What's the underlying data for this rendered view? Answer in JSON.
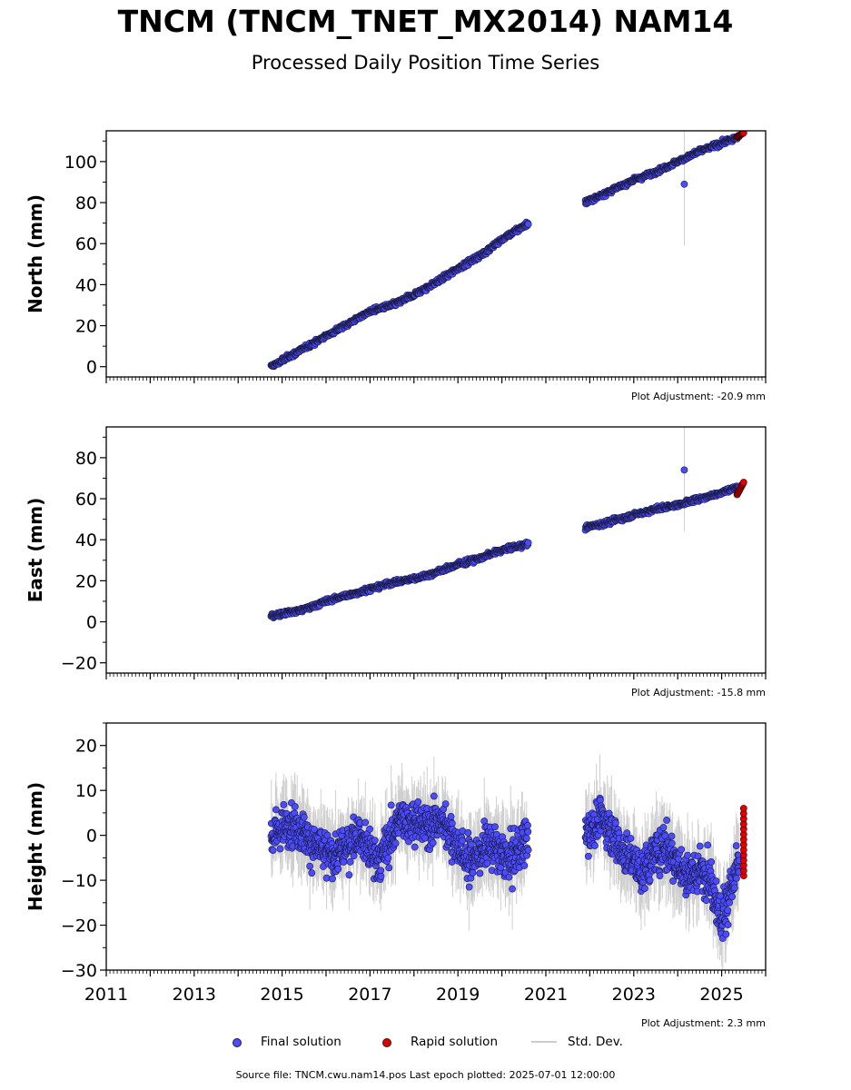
{
  "title": "TNCM (TNCM_TNET_MX2014) NAM14",
  "subtitle": "Processed Daily Position Time Series",
  "legend": {
    "final": "Final solution",
    "rapid": "Rapid solution",
    "std": "Std. Dev."
  },
  "source": "Source file: TNCM.cwu.nam14.pos  Last epoch plotted: 2025-07-01 12:00:00",
  "colors": {
    "final": "#4b4bff",
    "rapid": "#e00000",
    "std": "#bbbbbb"
  },
  "chart_data": [
    {
      "type": "scatter",
      "ylabel": "North (mm)",
      "ylim": [
        -5,
        115
      ],
      "yticks": [
        0,
        20,
        40,
        60,
        80,
        100
      ],
      "xlim": [
        2011,
        2026
      ],
      "adjustment": "Plot Adjustment: -20.9 mm",
      "segments": [
        {
          "x": [
            2014.75,
            2015.5,
            2016.0,
            2016.5,
            2017.0,
            2017.5,
            2018.0,
            2018.5,
            2019.0,
            2019.5,
            2020.0,
            2020.6
          ],
          "y": [
            0,
            9,
            15,
            21,
            27,
            30,
            35,
            41,
            48,
            54,
            62,
            70
          ]
        },
        {
          "x": [
            2021.9,
            2022.5,
            2023.0,
            2023.5,
            2024.0,
            2024.5,
            2025.0,
            2025.4
          ],
          "y": [
            80,
            86,
            91,
            95,
            100,
            105,
            109,
            112
          ]
        }
      ],
      "outliers": [
        {
          "x": 2024.15,
          "y": 89
        }
      ],
      "rapid": {
        "x": [
          2025.35,
          2025.5
        ],
        "y": [
          112,
          114
        ]
      }
    },
    {
      "type": "scatter",
      "ylabel": "East (mm)",
      "ylim": [
        -25,
        95
      ],
      "yticks": [
        -20,
        0,
        20,
        40,
        60,
        80
      ],
      "xlim": [
        2011,
        2026
      ],
      "adjustment": "Plot Adjustment: -15.8 mm",
      "segments": [
        {
          "x": [
            2014.75,
            2015.5,
            2016.0,
            2016.5,
            2017.0,
            2017.5,
            2018.0,
            2018.5,
            2019.0,
            2019.5,
            2020.0,
            2020.6
          ],
          "y": [
            3,
            6,
            10,
            13,
            16,
            19,
            21,
            24,
            28,
            31,
            35,
            38
          ]
        },
        {
          "x": [
            2021.9,
            2022.5,
            2023.0,
            2023.5,
            2024.0,
            2024.5,
            2025.0,
            2025.4
          ],
          "y": [
            46,
            49,
            52,
            55,
            57,
            60,
            63,
            66
          ]
        }
      ],
      "outliers": [
        {
          "x": 2024.15,
          "y": 74
        }
      ],
      "rapid": {
        "x": [
          2025.35,
          2025.5
        ],
        "y": [
          62,
          68
        ]
      }
    },
    {
      "type": "scatter",
      "ylabel": "Height (mm)",
      "ylim": [
        -30,
        25
      ],
      "yticks": [
        -30,
        -20,
        -10,
        0,
        10,
        20
      ],
      "xlim": [
        2011,
        2026
      ],
      "xticks": [
        2011,
        2013,
        2015,
        2017,
        2019,
        2021,
        2023,
        2025
      ],
      "xticklabels": [
        "2011",
        "2013",
        "2015",
        "2017",
        "2019",
        "2021",
        "2023",
        "2025"
      ],
      "adjustment": "Plot Adjustment: 2.3 mm",
      "segments": [
        {
          "x": [
            2014.75,
            2015.2,
            2015.7,
            2016.2,
            2016.7,
            2017.2,
            2017.7,
            2018.2,
            2018.7,
            2019.2,
            2019.7,
            2020.2,
            2020.6
          ],
          "y": [
            0,
            3,
            -2,
            -5,
            0,
            -6,
            4,
            2,
            3,
            -6,
            -2,
            -6,
            0
          ]
        },
        {
          "x": [
            2021.9,
            2022.3,
            2022.7,
            2023.2,
            2023.7,
            2024.2,
            2024.7,
            2025.0,
            2025.4
          ],
          "y": [
            0,
            4,
            -3,
            -8,
            -2,
            -9,
            -8,
            -19,
            -6
          ]
        }
      ],
      "outliers": [],
      "rapid": {
        "x": [
          2025.5,
          2025.5
        ],
        "y": [
          -9,
          6
        ]
      }
    }
  ]
}
